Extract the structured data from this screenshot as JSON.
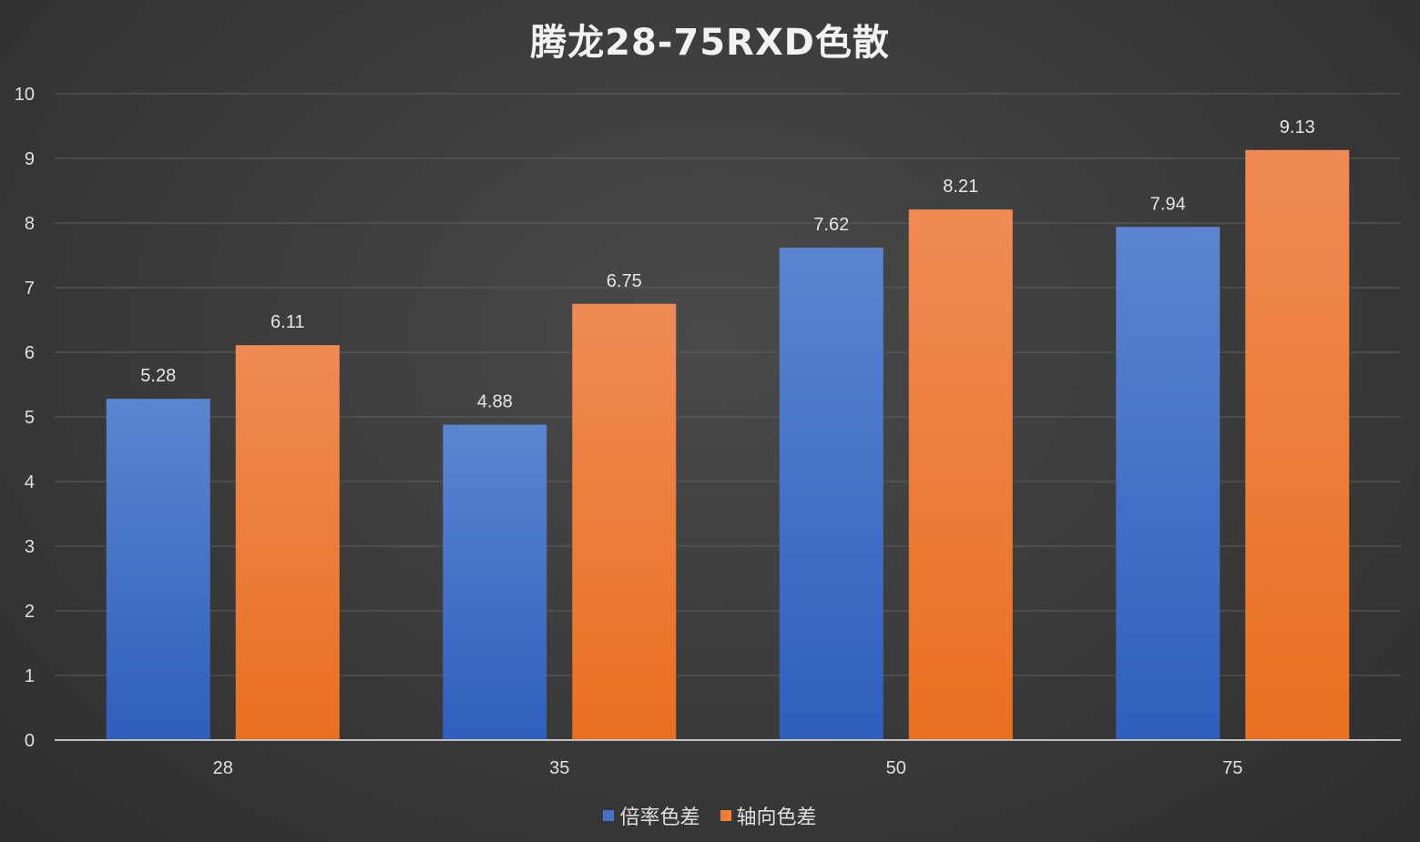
{
  "chart_data": {
    "type": "bar",
    "title": "腾龙28-75RXD色散",
    "xlabel": "",
    "ylabel": "",
    "categories": [
      "28",
      "35",
      "50",
      "75"
    ],
    "series": [
      {
        "name": "倍率色差",
        "values": [
          5.28,
          4.88,
          7.62,
          7.94
        ],
        "color": "#4472c4"
      },
      {
        "name": "轴向色差",
        "values": [
          6.11,
          6.75,
          8.21,
          9.13
        ],
        "color": "#ed7d31"
      }
    ],
    "ylim": [
      0,
      10
    ],
    "yticks": [
      "0",
      "1",
      "2",
      "3",
      "4",
      "5",
      "6",
      "7",
      "8",
      "9",
      "10"
    ],
    "data_labels": [
      [
        "5.28",
        "4.88",
        "7.62",
        "7.94"
      ],
      [
        "6.11",
        "6.75",
        "8.21",
        "9.13"
      ]
    ],
    "grid": true,
    "legend_position": "bottom",
    "background_color": "#3a3a3a"
  }
}
